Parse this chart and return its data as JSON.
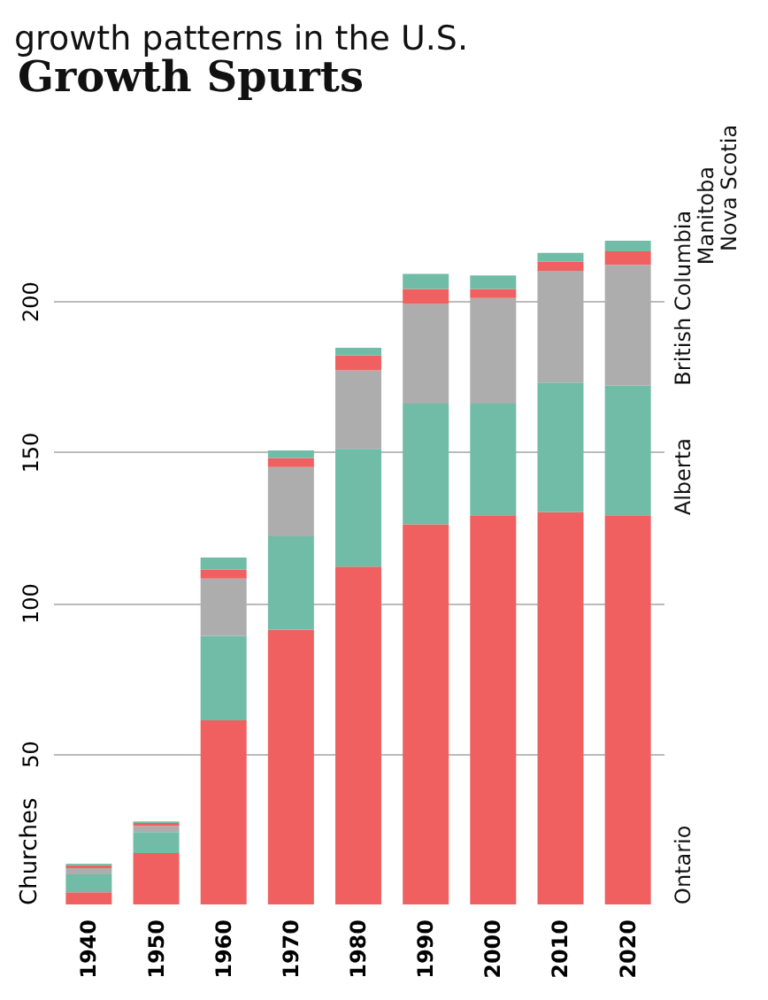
{
  "chart_data": {
    "type": "bar",
    "stacked": true,
    "title": "Growth Spurts",
    "ylabel": "Churches",
    "annotations": [
      "growth patterns in the U.S."
    ],
    "categories": [
      "1940",
      "1950",
      "1960",
      "1970",
      "1980",
      "1990",
      "2000",
      "2010",
      "2020"
    ],
    "series": [
      {
        "name": "Ontario",
        "color": "#f06060",
        "values": [
          4,
          17,
          61,
          91,
          112,
          126,
          129,
          130,
          129
        ]
      },
      {
        "name": "Alberta",
        "color": "#71bca6",
        "values": [
          6,
          7,
          28,
          31,
          39,
          40,
          37,
          43,
          43
        ]
      },
      {
        "name": "British Columbia",
        "color": "#adadad",
        "values": [
          2,
          2,
          19,
          23,
          26,
          33,
          35,
          37,
          40
        ]
      },
      {
        "name": "Manitoba",
        "color": "#f06060",
        "values": [
          1,
          1,
          3,
          3,
          5,
          5,
          3,
          3,
          4.5
        ]
      },
      {
        "name": "Nova Scotia",
        "color": "#71bca6",
        "values": [
          0.5,
          0.5,
          4,
          2.5,
          2.5,
          5,
          4.5,
          3,
          3.5
        ]
      }
    ],
    "ylim": [
      0,
      220
    ],
    "yticks": [
      50,
      100,
      150,
      200
    ],
    "grid": "y",
    "legend": false
  }
}
